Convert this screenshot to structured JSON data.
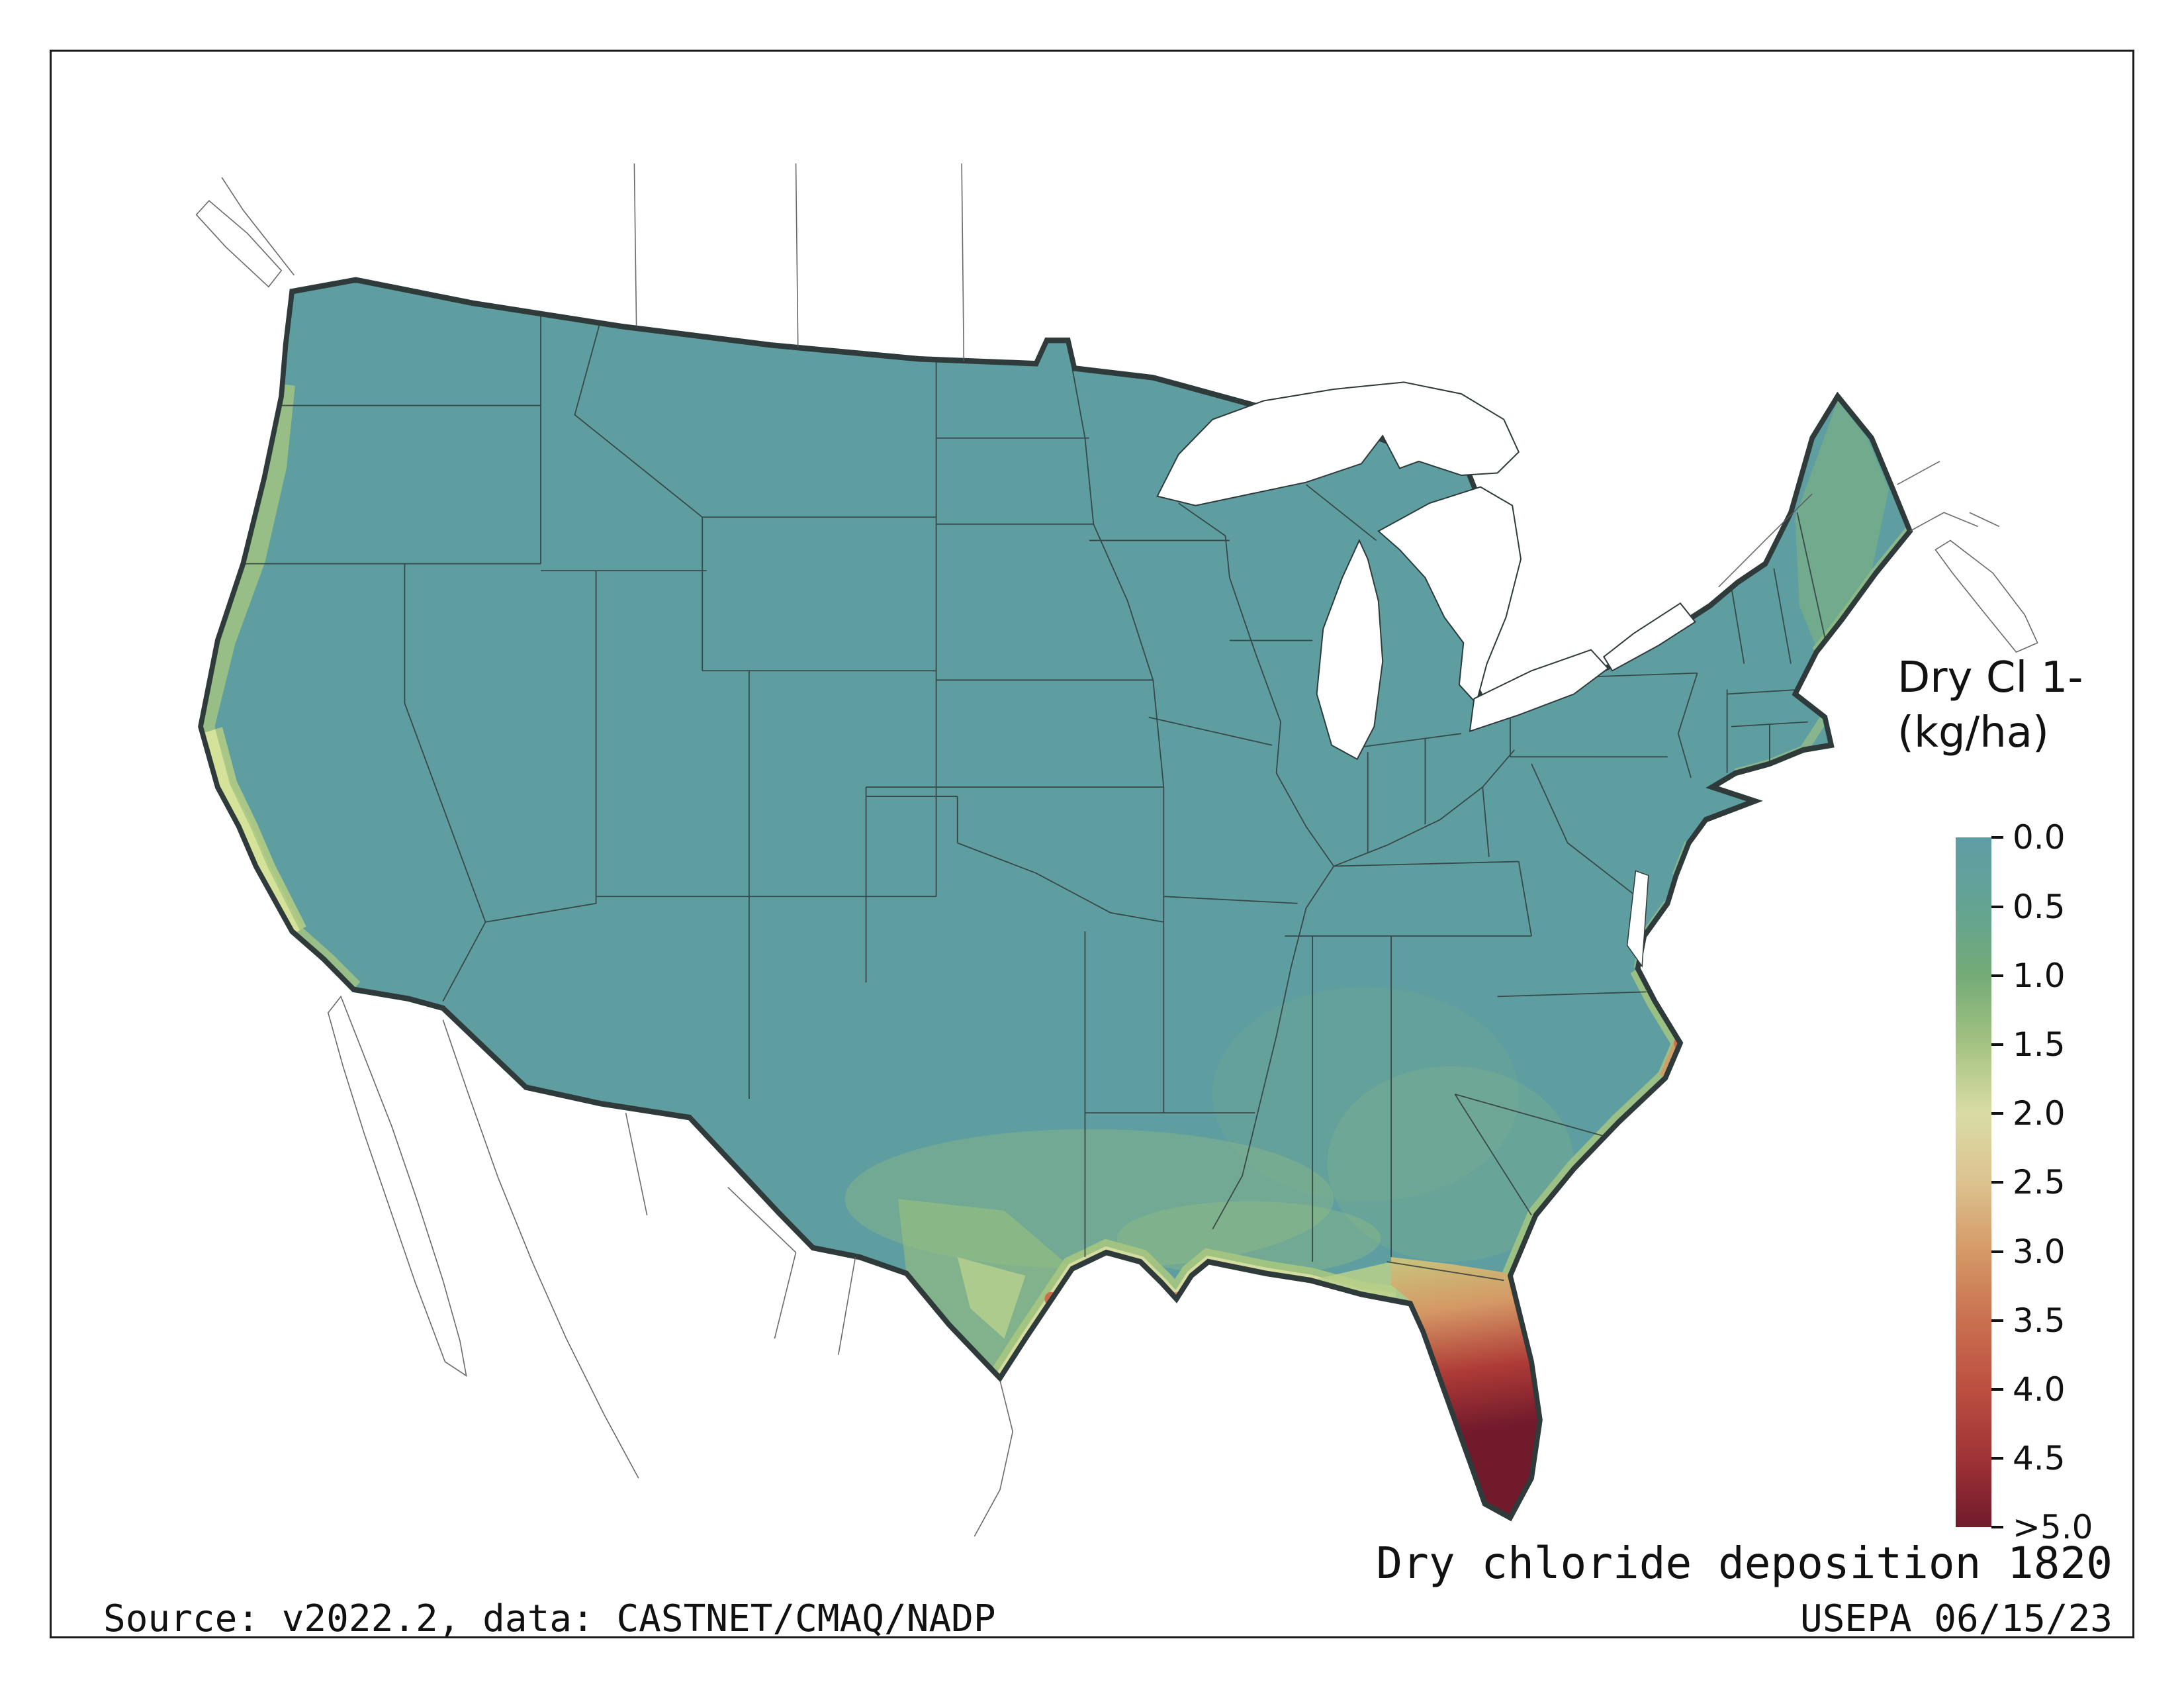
{
  "figure": {
    "caption": "Dry chloride deposition 1820",
    "source_left": "Source: v2022.2, data: CASTNET/CMAQ/NADP",
    "source_right": "USEPA 06/15/23"
  },
  "legend": {
    "title_line1": "Dry Cl 1-",
    "title_line2": "(kg/ha)",
    "stops": [
      {
        "label": "0.0",
        "color": "#609DA6"
      },
      {
        "label": "0.5",
        "color": "#63A392"
      },
      {
        "label": "1.0",
        "color": "#74AB77"
      },
      {
        "label": "1.5",
        "color": "#A4C382"
      },
      {
        "label": "2.0",
        "color": "#D9DCA4"
      },
      {
        "label": "2.5",
        "color": "#DCC290"
      },
      {
        "label": "3.0",
        "color": "#D59966"
      },
      {
        "label": "3.5",
        "color": "#C97050"
      },
      {
        "label": "4.0",
        "color": "#BC4F40"
      },
      {
        "label": "4.5",
        "color": "#A03336"
      },
      {
        "label": ">5.0",
        "color": "#701A2C"
      }
    ]
  },
  "map": {
    "region": "Conterminous United States",
    "colors": {
      "base": "#5F9EA0",
      "coastal_outer": "#A9C87F",
      "coastal_inner": "#D9DFA2",
      "coastal_bright": "#D9E49B",
      "coastal_mid": "#B5CE82",
      "panhandle_green": "#B9D088",
      "tint": "#9CC27A",
      "maine_tint": "#8FBC74",
      "fleck_orange": "#D59966",
      "fleck_red": "#C96F4C",
      "fleck_bright": "#C9DC8F",
      "florida_top": "#C9BE7A",
      "florida_orange": "#D59966",
      "florida_red": "#AE3B36",
      "florida_peak": "#701A2C",
      "water": "#FFFFFF",
      "boundary": "#2F3A3A",
      "neighbor_boundary": "#5A5A5A"
    }
  }
}
